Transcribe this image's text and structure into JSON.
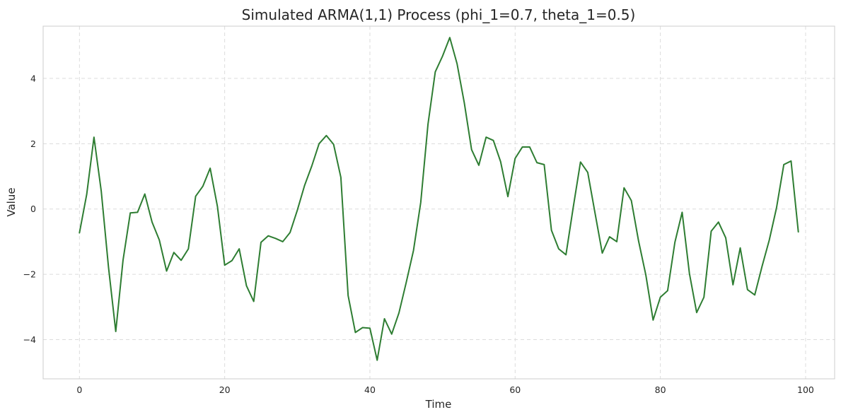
{
  "chart_data": {
    "type": "line",
    "title": "Simulated ARMA(1,1) Process (phi_1=0.7, theta_1=0.5)",
    "xlabel": "Time",
    "ylabel": "Value",
    "xlim": [
      -5,
      104
    ],
    "ylim": [
      -5.2,
      5.6
    ],
    "xticks": [
      0,
      20,
      40,
      60,
      80,
      100
    ],
    "yticks": [
      -4,
      -2,
      0,
      2,
      4
    ],
    "xtick_labels": [
      "0",
      "20",
      "40",
      "60",
      "80",
      "100"
    ],
    "ytick_labels": [
      "−4",
      "−2",
      "0",
      "2",
      "4"
    ],
    "grid": true,
    "line_color": "#2e7d32",
    "series": [
      {
        "values": [
          -0.73,
          0.45,
          2.2,
          0.55,
          -1.78,
          -3.75,
          -1.57,
          -0.12,
          -0.1,
          0.46,
          -0.4,
          -0.95,
          -1.9,
          -1.33,
          -1.57,
          -1.22,
          0.39,
          0.7,
          1.25,
          0.08,
          -1.72,
          -1.58,
          -1.22,
          -2.35,
          -2.83,
          -1.02,
          -0.82,
          -0.9,
          -1.0,
          -0.72,
          -0.04,
          0.72,
          1.32,
          2.0,
          2.25,
          1.98,
          0.97,
          -2.65,
          -3.78,
          -3.63,
          -3.65,
          -4.63,
          -3.36,
          -3.83,
          -3.18,
          -2.25,
          -1.27,
          0.2,
          2.6,
          4.2,
          4.68,
          5.25,
          4.45,
          3.25,
          1.82,
          1.34,
          2.2,
          2.1,
          1.45,
          0.38,
          1.55,
          1.9,
          1.9,
          1.42,
          1.36,
          -0.65,
          -1.22,
          -1.4,
          0.05,
          1.44,
          1.12,
          -0.12,
          -1.35,
          -0.85,
          -1.0,
          0.65,
          0.26,
          -0.98,
          -2.02,
          -3.4,
          -2.7,
          -2.5,
          -1.02,
          -0.1,
          -1.97,
          -3.17,
          -2.7,
          -0.68,
          -0.4,
          -0.88,
          -2.32,
          -1.19,
          -2.47,
          -2.63,
          -1.76,
          -0.95,
          0.04,
          1.36,
          1.47,
          -0.7
        ]
      }
    ]
  }
}
